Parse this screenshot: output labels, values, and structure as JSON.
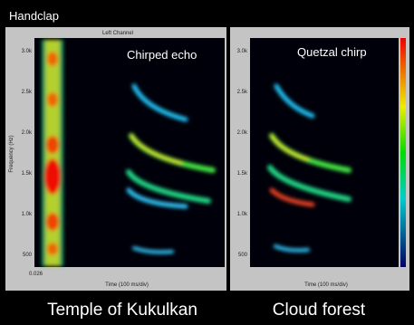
{
  "header": {
    "title": "Handclap"
  },
  "panels": [
    {
      "channel": "Left Channel",
      "label": "Chirped echo",
      "y_axis": "Frequency (Hz)",
      "x_axis": "Time (100 ms/div)",
      "yticks": [
        "3.0k",
        "2.5k",
        "2.0k",
        "1.5k",
        "1.0k",
        "500"
      ],
      "x_start": "0.026",
      "caption": "Temple of Kukulkan"
    },
    {
      "label": "Quetzal chirp",
      "x_axis": "Time (100 ms/div)",
      "yticks": [
        "3.0k",
        "2.5k",
        "2.0k",
        "1.5k",
        "1.0k",
        "500"
      ],
      "caption": "Cloud forest"
    }
  ]
}
